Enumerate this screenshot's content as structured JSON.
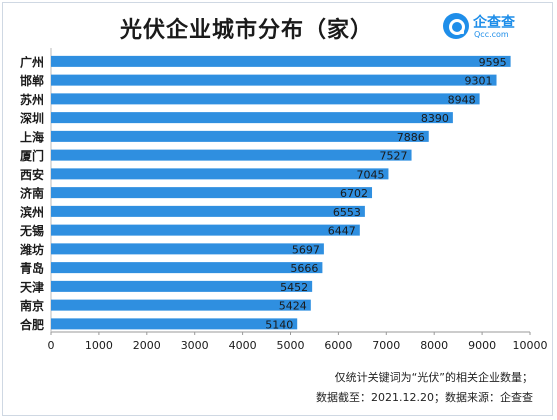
{
  "title": "光伏企业城市分布（家）",
  "logo": {
    "name": "企查查",
    "url": "Qcc.com"
  },
  "footnotes": {
    "line1": "仅统计关键词为“光伏”的相关企业数量；",
    "line2": "数据截至：2021.12.20；数据来源：企查查"
  },
  "colors": {
    "bar": "#2f8fe0",
    "text": "#1a1a1a"
  },
  "chart_data": {
    "type": "bar",
    "orientation": "horizontal",
    "categories": [
      "广州",
      "邯郸",
      "苏州",
      "深圳",
      "上海",
      "厦门",
      "西安",
      "济南",
      "滨州",
      "无锡",
      "潍坊",
      "青岛",
      "天津",
      "南京",
      "合肥"
    ],
    "values": [
      9595,
      9301,
      8948,
      8390,
      7886,
      7527,
      7045,
      6702,
      6553,
      6447,
      5697,
      5666,
      5452,
      5424,
      5140
    ],
    "xlim": [
      0,
      10000
    ],
    "xticks": [
      0,
      1000,
      2000,
      3000,
      4000,
      5000,
      6000,
      7000,
      8000,
      9000,
      10000
    ],
    "grid": false
  }
}
